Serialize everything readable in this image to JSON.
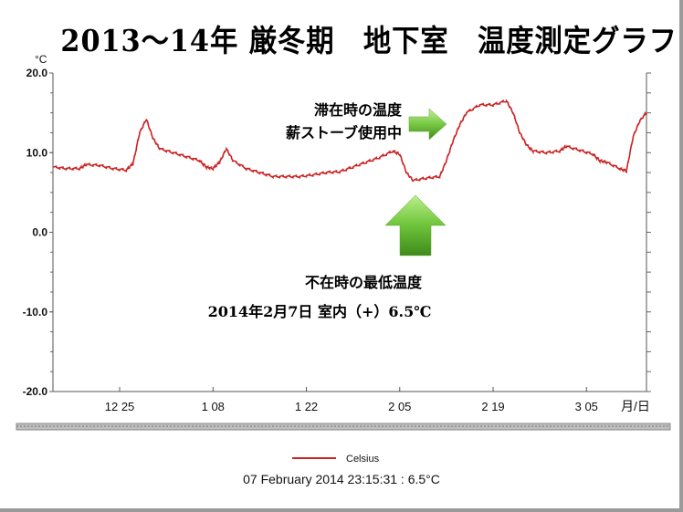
{
  "title": "2013～14年 厳冬期　地下室　温度測定グラフ",
  "chart_data": {
    "type": "line",
    "unit_label": "°C",
    "x_axis_label": "月/日",
    "y_ticks": [
      "20.0",
      "10.0",
      "0.0",
      "-10.0",
      "-20.0"
    ],
    "ylim": [
      -20,
      20
    ],
    "x_ticks": [
      {
        "date": "2013-12-25",
        "label": "12 25"
      },
      {
        "date": "2014-01-08",
        "label": "1 08"
      },
      {
        "date": "2014-01-22",
        "label": "1 22"
      },
      {
        "date": "2014-02-05",
        "label": "2 05"
      },
      {
        "date": "2014-02-19",
        "label": "2 19"
      },
      {
        "date": "2014-03-05",
        "label": "3 05"
      }
    ],
    "xlim": [
      "2013-12-15",
      "2014-03-14"
    ],
    "grid": false,
    "legend_position": "bottom-center",
    "series": [
      {
        "name": "Celsius",
        "color": "#cc2222",
        "points": [
          [
            "2013-12-15",
            8.2
          ],
          [
            "2013-12-17",
            8.0
          ],
          [
            "2013-12-19",
            8.0
          ],
          [
            "2013-12-20",
            8.5
          ],
          [
            "2013-12-22",
            8.4
          ],
          [
            "2013-12-24",
            8.0
          ],
          [
            "2013-12-26",
            7.8
          ],
          [
            "2013-12-27",
            8.6
          ],
          [
            "2013-12-28",
            12.5
          ],
          [
            "2013-12-29",
            14.2
          ],
          [
            "2013-12-30",
            11.8
          ],
          [
            "2013-12-31",
            10.5
          ],
          [
            "2014-01-02",
            10.0
          ],
          [
            "2014-01-04",
            9.5
          ],
          [
            "2014-01-06",
            9.0
          ],
          [
            "2014-01-07",
            8.2
          ],
          [
            "2014-01-08",
            8.0
          ],
          [
            "2014-01-09",
            8.8
          ],
          [
            "2014-01-10",
            10.5
          ],
          [
            "2014-01-11",
            9.0
          ],
          [
            "2014-01-13",
            8.0
          ],
          [
            "2014-01-15",
            7.5
          ],
          [
            "2014-01-17",
            7.0
          ],
          [
            "2014-01-19",
            7.0
          ],
          [
            "2014-01-21",
            7.0
          ],
          [
            "2014-01-23",
            7.2
          ],
          [
            "2014-01-25",
            7.5
          ],
          [
            "2014-01-27",
            7.6
          ],
          [
            "2014-01-29",
            8.2
          ],
          [
            "2014-01-31",
            8.8
          ],
          [
            "2014-02-02",
            9.4
          ],
          [
            "2014-02-04",
            10.2
          ],
          [
            "2014-02-05",
            9.8
          ],
          [
            "2014-02-06",
            7.5
          ],
          [
            "2014-02-07",
            6.5
          ],
          [
            "2014-02-09",
            6.8
          ],
          [
            "2014-02-11",
            7.0
          ],
          [
            "2014-02-12",
            9.0
          ],
          [
            "2014-02-13",
            11.5
          ],
          [
            "2014-02-14",
            13.5
          ],
          [
            "2014-02-15",
            15.0
          ],
          [
            "2014-02-17",
            16.0
          ],
          [
            "2014-02-19",
            16.0
          ],
          [
            "2014-02-21",
            16.5
          ],
          [
            "2014-02-22",
            15.0
          ],
          [
            "2014-02-23",
            12.5
          ],
          [
            "2014-02-24",
            11.0
          ],
          [
            "2014-02-25",
            10.2
          ],
          [
            "2014-02-27",
            10.0
          ],
          [
            "2014-03-01",
            10.2
          ],
          [
            "2014-03-02",
            10.8
          ],
          [
            "2014-03-04",
            10.3
          ],
          [
            "2014-03-06",
            9.8
          ],
          [
            "2014-03-07",
            9.0
          ],
          [
            "2014-03-08",
            8.8
          ],
          [
            "2014-03-10",
            8.0
          ],
          [
            "2014-03-11",
            7.7
          ],
          [
            "2014-03-12",
            12.0
          ],
          [
            "2014-03-13",
            14.0
          ],
          [
            "2014-03-14",
            15.0
          ]
        ]
      }
    ],
    "annotations": [
      {
        "id": "stay",
        "lines": [
          "滞在時の温度",
          "薪ストーブ使用中"
        ],
        "arrow_color": "#6ec43a",
        "arrow_direction": "right"
      },
      {
        "id": "absent",
        "lines": [
          "不在時の最低温度",
          "2014年2月7日 室内（+）6.5℃"
        ],
        "arrow_color": "#6ec43a",
        "arrow_direction": "up"
      }
    ],
    "readout": "07 February 2014 23:15:31 : 6.5°C"
  }
}
